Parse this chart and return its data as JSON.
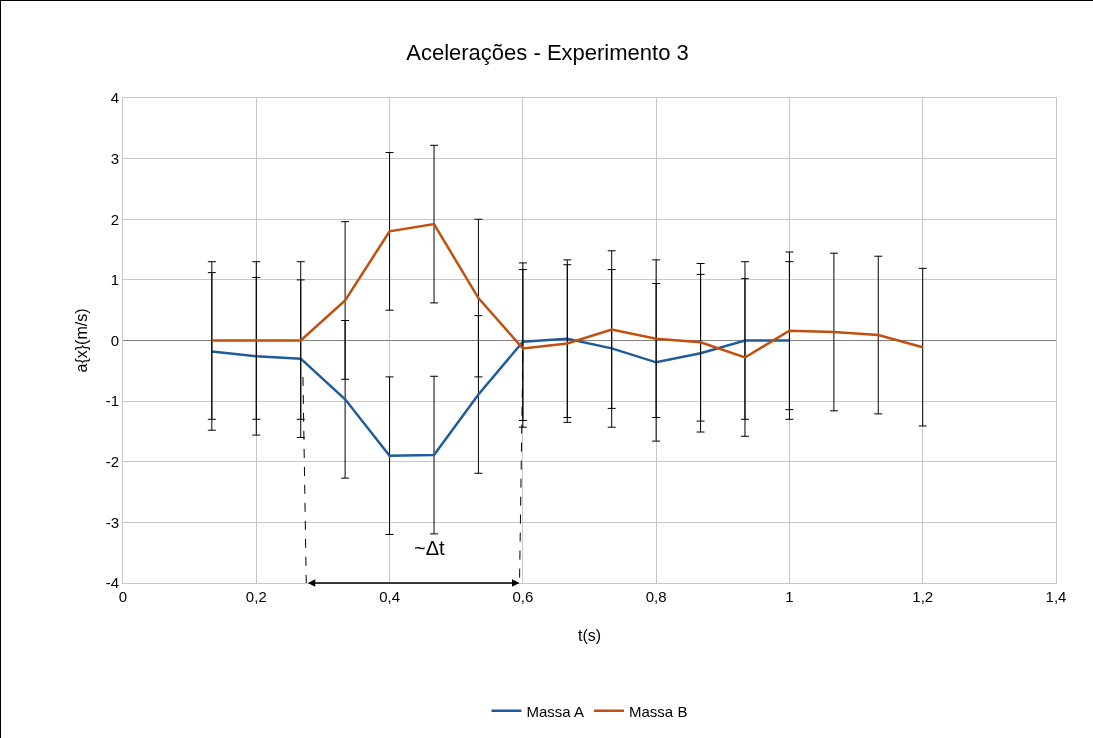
{
  "chart_data": {
    "type": "line",
    "title": "Acelerações - Experimento 3",
    "xlabel": "t(s)",
    "ylabel": "a{x}(m/s)",
    "series": [
      {
        "name": "Massa A",
        "color": "#1f5c99",
        "x": [
          0.1333,
          0.2,
          0.2667,
          0.3333,
          0.4,
          0.4667,
          0.5333,
          0.6,
          0.6667,
          0.7333,
          0.8,
          0.8667,
          0.9333,
          1.0
        ],
        "values": [
          -0.18,
          -0.26,
          -0.3,
          -0.97,
          -1.9,
          -1.89,
          -0.89,
          -0.02,
          0.03,
          -0.13,
          -0.36,
          -0.21,
          0,
          0
        ],
        "errors": [
          1.3,
          1.3,
          1.3,
          1.3,
          1.3,
          1.3,
          1.3,
          1.3,
          1.3,
          1.3,
          1.3,
          1.3,
          1.3,
          1.3
        ]
      },
      {
        "name": "Massa B",
        "color": "#c0500f",
        "x": [
          0.1333,
          0.2,
          0.2667,
          0.3333,
          0.4,
          0.4667,
          0.5333,
          0.6,
          0.6667,
          0.7333,
          0.8,
          0.8667,
          0.9333,
          1.0,
          1.0667,
          1.1333,
          1.2
        ],
        "values": [
          0,
          0,
          0,
          0.66,
          1.8,
          1.92,
          0.7,
          -0.13,
          -0.05,
          0.18,
          0.03,
          -0.03,
          -0.28,
          0.16,
          0.14,
          0.09,
          -0.11
        ],
        "errors": [
          1.3,
          1.3,
          1.3,
          1.3,
          1.3,
          1.3,
          1.3,
          1.3,
          1.3,
          1.3,
          1.3,
          1.3,
          1.3,
          1.3,
          1.3,
          1.3,
          1.3
        ]
      }
    ],
    "xlim": [
      0,
      1.4
    ],
    "xticks": [
      0,
      {
        "value": 0.2,
        "label": "0,2"
      },
      {
        "value": 0.4,
        "label": "0,4"
      },
      {
        "value": 0.6,
        "label": "0,6"
      },
      {
        "value": 0.8,
        "label": "0,8"
      },
      1,
      {
        "value": 1.2,
        "label": "1,2"
      },
      {
        "value": 1.4,
        "label": "1,4"
      }
    ],
    "ylim": [
      -4,
      4
    ],
    "yticks": [
      -4,
      -3,
      -2,
      -1,
      0,
      1,
      2,
      3,
      4
    ],
    "annotations": [
      "~Δt"
    ],
    "grid": true,
    "legend": "bottom",
    "marker": "none",
    "line_style": "solid"
  }
}
